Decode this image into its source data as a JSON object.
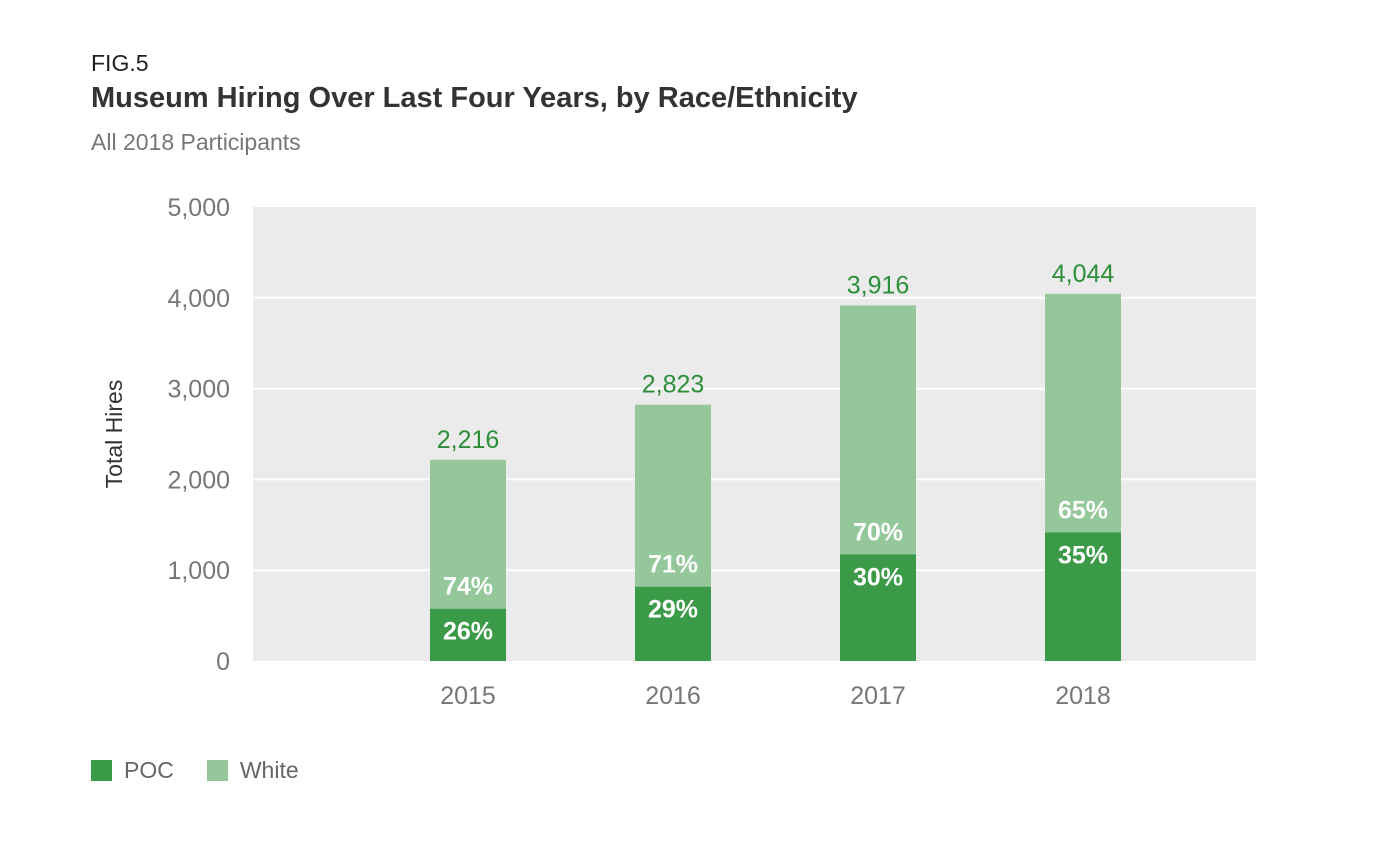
{
  "figure_label": "FIG.5",
  "title": "Museum Hiring Over Last Four Years, by Race/Ethnicity",
  "subtitle": "All 2018 Participants",
  "colors": {
    "poc": "#3b9a48",
    "white": "#94c79a",
    "total_label": "#2e8f3a",
    "plot_bg": "#ebebeb",
    "grid": "#ffffff",
    "tick": "#777777"
  },
  "chart_data": {
    "type": "bar",
    "stacked": true,
    "title": "Museum Hiring Over Last Four Years, by Race/Ethnicity",
    "subtitle": "All 2018 Participants",
    "xlabel": "",
    "ylabel": "Total Hires",
    "ylim": [
      0,
      5000
    ],
    "yticks": [
      0,
      1000,
      2000,
      3000,
      4000,
      5000
    ],
    "ytick_labels": [
      "0",
      "1,000",
      "2,000",
      "3,000",
      "4,000",
      "5,000"
    ],
    "grid": true,
    "legend_position": "bottom-left",
    "categories": [
      "2015",
      "2016",
      "2017",
      "2018"
    ],
    "totals": [
      2216,
      2823,
      3916,
      4044
    ],
    "total_labels": [
      "2,216",
      "2,823",
      "3,916",
      "4,044"
    ],
    "series": [
      {
        "name": "POC",
        "percent": [
          26,
          29,
          30,
          35
        ],
        "percent_labels": [
          "26%",
          "29%",
          "30%",
          "35%"
        ]
      },
      {
        "name": "White",
        "percent": [
          74,
          71,
          70,
          65
        ],
        "percent_labels": [
          "74%",
          "71%",
          "70%",
          "65%"
        ]
      }
    ]
  },
  "legend": [
    {
      "label": "POC",
      "color": "#3b9a48"
    },
    {
      "label": "White",
      "color": "#94c79a"
    }
  ]
}
